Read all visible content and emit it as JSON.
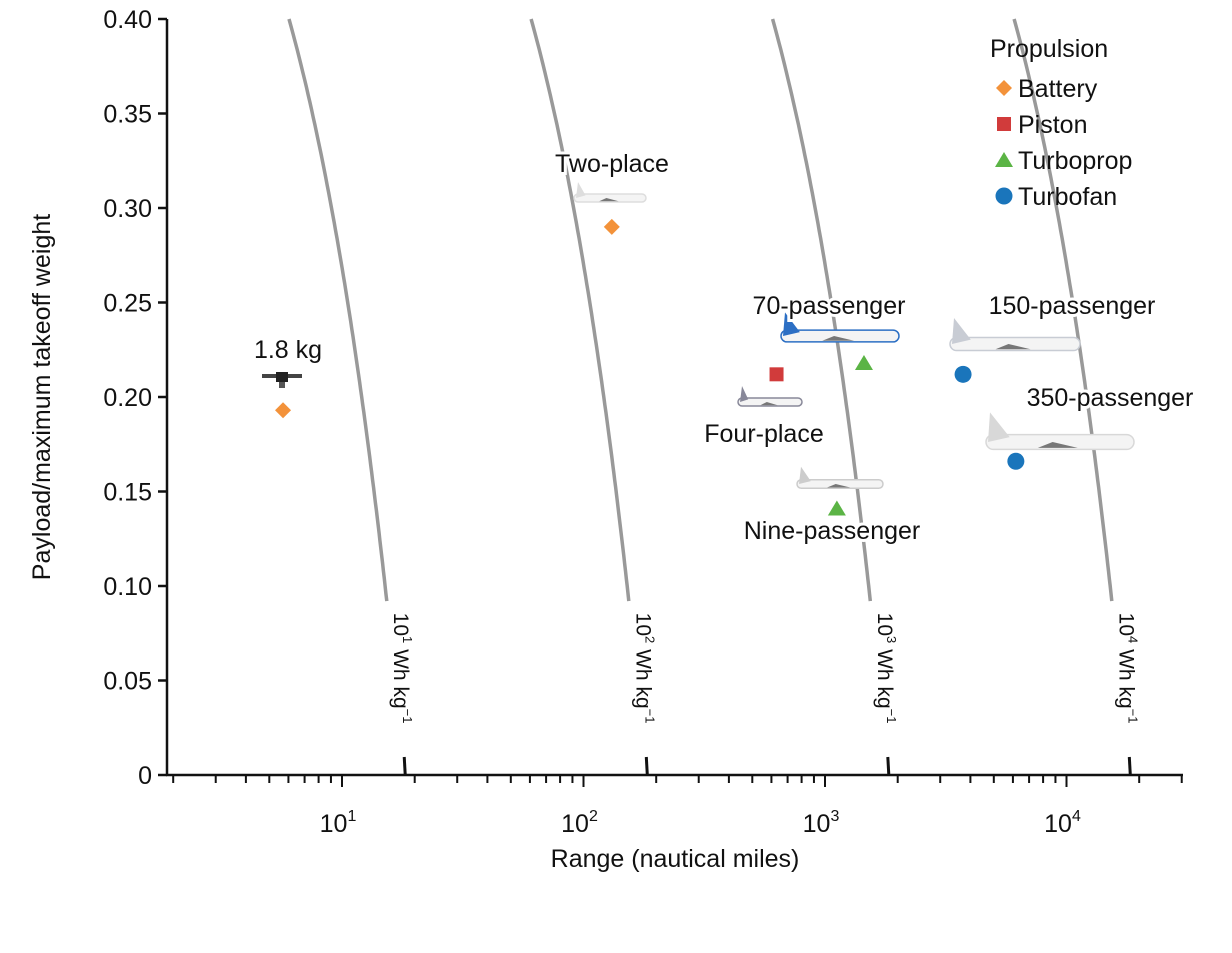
{
  "chart_data": {
    "type": "scatter",
    "xlabel": "Range (nautical miles)",
    "ylabel": "Payload/maximum takeoff weight",
    "xscale": "log",
    "xlim": [
      1.9,
      30000
    ],
    "ylim": [
      0,
      0.4
    ],
    "grid": false,
    "x_ticks": [
      {
        "base": "10",
        "exp": "1",
        "value": 10
      },
      {
        "base": "10",
        "exp": "2",
        "value": 100
      },
      {
        "base": "10",
        "exp": "3",
        "value": 1000
      },
      {
        "base": "10",
        "exp": "4",
        "value": 10000
      }
    ],
    "y_ticks": [
      "0",
      "0.05",
      "0.10",
      "0.15",
      "0.20",
      "0.25",
      "0.30",
      "0.35",
      "0.40"
    ],
    "y_tick_values": [
      0,
      0.05,
      0.1,
      0.15,
      0.2,
      0.25,
      0.3,
      0.35,
      0.4
    ],
    "legend": {
      "title": "Propulsion",
      "placement": "top-right",
      "entries": [
        {
          "name": "Battery",
          "marker": "diamond",
          "color": "#f3923a"
        },
        {
          "name": "Piston",
          "marker": "square",
          "color": "#d13b3b"
        },
        {
          "name": "Turboprop",
          "marker": "triangle",
          "color": "#5bb445"
        },
        {
          "name": "Turbofan",
          "marker": "circle",
          "color": "#1a75bb"
        }
      ]
    },
    "points": [
      {
        "label": "1.8 kg",
        "propulsion": "Battery",
        "x": 5.7,
        "y": 0.193
      },
      {
        "label": "Two-place",
        "propulsion": "Battery",
        "x": 131,
        "y": 0.29
      },
      {
        "label": "Four-place",
        "propulsion": "Piston",
        "x": 630,
        "y": 0.212
      },
      {
        "label": "70-passenger",
        "propulsion": "Turboprop",
        "x": 1450,
        "y": 0.218
      },
      {
        "label": "Nine-passenger",
        "propulsion": "Turboprop",
        "x": 1120,
        "y": 0.141
      },
      {
        "label": "150-passenger",
        "propulsion": "Turbofan",
        "x": 3730,
        "y": 0.212
      },
      {
        "label": "350-passenger",
        "propulsion": "Turbofan",
        "x": 6170,
        "y": 0.166
      }
    ],
    "specific_energy_curves": [
      {
        "base": "10",
        "exp": "1",
        "unit": "Wh kg",
        "unit_exp": "−1",
        "range_at_zero_payload": 18.1
      },
      {
        "base": "10",
        "exp": "2",
        "unit": "Wh kg",
        "unit_exp": "−1",
        "range_at_zero_payload": 182
      },
      {
        "base": "10",
        "exp": "3",
        "unit": "Wh kg",
        "unit_exp": "−1",
        "range_at_zero_payload": 1820
      },
      {
        "base": "10",
        "exp": "4",
        "unit": "Wh kg",
        "unit_exp": "−1",
        "range_at_zero_payload": 18200
      }
    ],
    "curve_color": "#999999"
  }
}
